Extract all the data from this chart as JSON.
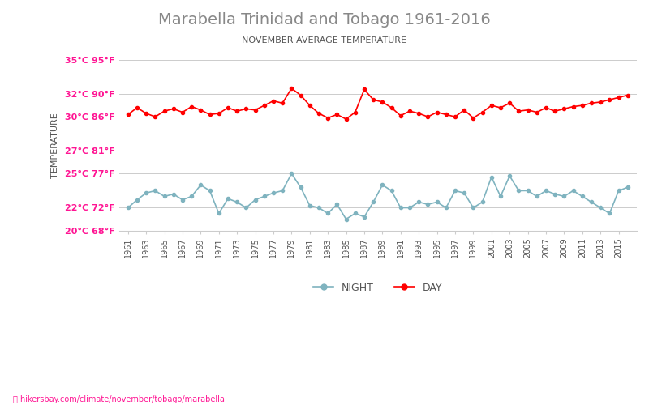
{
  "title": "Marabella Trinidad and Tobago 1961-2016",
  "subtitle": "NOVEMBER AVERAGE TEMPERATURE",
  "ylabel": "TEMPERATURE",
  "url": "hikersbay.com/climate/november/tobago/marabella",
  "years": [
    1961,
    1962,
    1963,
    1964,
    1965,
    1966,
    1967,
    1968,
    1969,
    1970,
    1971,
    1972,
    1973,
    1974,
    1975,
    1976,
    1977,
    1978,
    1979,
    1980,
    1981,
    1982,
    1983,
    1984,
    1985,
    1986,
    1987,
    1988,
    1989,
    1990,
    1991,
    1992,
    1993,
    1994,
    1995,
    1996,
    1997,
    1998,
    1999,
    2000,
    2001,
    2002,
    2003,
    2004,
    2005,
    2006,
    2007,
    2008,
    2009,
    2010,
    2011,
    2012,
    2013,
    2014,
    2015,
    2016
  ],
  "day_temps": [
    30.2,
    30.8,
    30.3,
    30.0,
    30.5,
    30.7,
    30.4,
    30.9,
    30.6,
    30.2,
    30.3,
    30.8,
    30.5,
    30.7,
    30.6,
    31.0,
    31.4,
    31.2,
    32.5,
    31.9,
    31.0,
    30.3,
    29.9,
    30.2,
    29.8,
    30.4,
    32.4,
    31.5,
    31.3,
    30.8,
    30.1,
    30.5,
    30.3,
    30.0,
    30.4,
    30.2,
    30.0,
    30.6,
    29.9,
    30.4,
    31.0,
    30.8,
    31.2,
    30.5,
    30.6,
    30.4,
    30.8,
    30.5,
    30.7,
    30.9,
    31.0,
    31.2,
    31.3,
    31.5,
    31.7,
    31.9
  ],
  "night_temps": [
    22.0,
    22.7,
    23.3,
    23.5,
    23.0,
    23.2,
    22.7,
    23.0,
    24.0,
    23.5,
    21.5,
    22.8,
    22.5,
    22.0,
    22.7,
    23.0,
    23.3,
    23.5,
    25.0,
    23.8,
    22.2,
    22.0,
    21.5,
    22.3,
    21.0,
    21.5,
    21.2,
    22.5,
    24.0,
    23.5,
    22.0,
    22.0,
    22.5,
    22.3,
    22.5,
    22.0,
    23.5,
    23.3,
    22.0,
    22.5,
    24.7,
    23.0,
    24.8,
    23.5,
    23.5,
    23.0,
    23.5,
    23.2,
    23.0,
    23.5,
    23.0,
    22.5,
    22.0,
    21.5,
    23.5,
    23.8
  ],
  "ylim_min": 20,
  "ylim_max": 35,
  "yticks_c": [
    20,
    22,
    25,
    27,
    30,
    32,
    35
  ],
  "yticks_f": [
    68,
    72,
    77,
    81,
    86,
    90,
    95
  ],
  "day_color": "#ff0000",
  "night_color": "#7fb3bf",
  "title_color": "#888888",
  "subtitle_color": "#555555",
  "ylabel_color": "#555555",
  "tick_color": "#ff1493",
  "grid_color": "#cccccc",
  "background_color": "#ffffff",
  "url_color": "#ff1493",
  "legend_night_color": "#7fb3bf",
  "legend_day_color": "#ff0000"
}
